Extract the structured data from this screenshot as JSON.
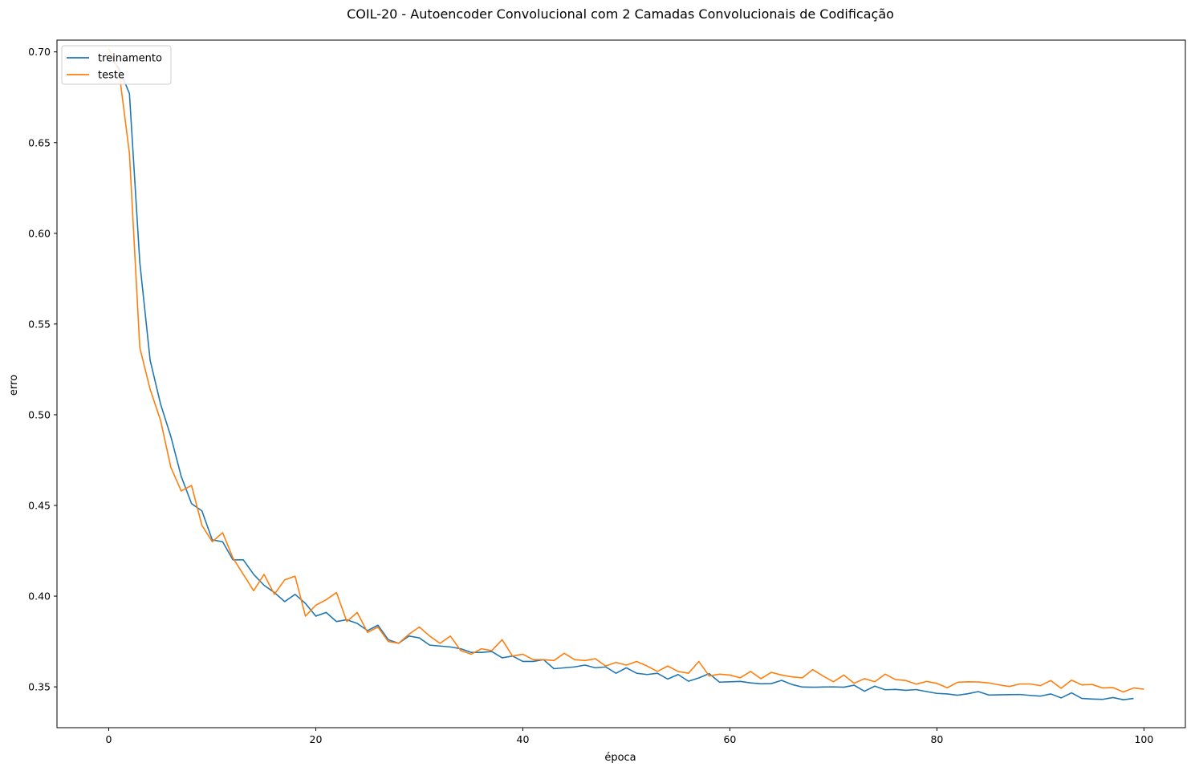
{
  "chart_data": {
    "type": "line",
    "title": "COIL-20 - Autoencoder Convolucional com 2 Camadas Convolucionais de Codificação",
    "xlabel": "época",
    "ylabel": "erro",
    "xlim": [
      -5,
      104
    ],
    "ylim": [
      0.3275,
      0.7065
    ],
    "xticks": [
      0,
      20,
      40,
      60,
      80,
      100
    ],
    "xtick_labels": [
      "0",
      "20",
      "40",
      "60",
      "80",
      "100"
    ],
    "yticks": [
      0.35,
      0.4,
      0.45,
      0.5,
      0.55,
      0.6,
      0.65,
      0.7
    ],
    "ytick_labels": [
      "0.35",
      "0.40",
      "0.45",
      "0.50",
      "0.55",
      "0.60",
      "0.65",
      "0.70"
    ],
    "grid": false,
    "legend_position": "upper-left",
    "series": [
      {
        "name": "treinamento",
        "color": "#1f77b4",
        "values": [
          0.698,
          0.691,
          0.677,
          0.584,
          0.53,
          0.506,
          0.488,
          0.466,
          0.451,
          0.447,
          0.431,
          0.43,
          0.42,
          0.42,
          0.412,
          0.406,
          0.402,
          0.397,
          0.401,
          0.396,
          0.389,
          0.391,
          0.386,
          0.387,
          0.385,
          0.381,
          0.384,
          0.376,
          0.374,
          0.378,
          0.377,
          0.373,
          0.3725,
          0.372,
          0.371,
          0.369,
          0.369,
          0.3695,
          0.366,
          0.367,
          0.364,
          0.364,
          0.365,
          0.36,
          0.3605,
          0.361,
          0.362,
          0.3605,
          0.361,
          0.3575,
          0.3605,
          0.3575,
          0.3568,
          0.3575,
          0.3543,
          0.3568,
          0.3531,
          0.3549,
          0.3573,
          0.3526,
          0.3528,
          0.353,
          0.3522,
          0.3517,
          0.3518,
          0.3536,
          0.3513,
          0.3499,
          0.3498,
          0.3499,
          0.35,
          0.3498,
          0.3509,
          0.3476,
          0.3504,
          0.3484,
          0.3486,
          0.3481,
          0.3485,
          0.3474,
          0.3464,
          0.3461,
          0.3454,
          0.3462,
          0.3474,
          0.3455,
          0.3456,
          0.3457,
          0.3458,
          0.3453,
          0.3449,
          0.3461,
          0.3439,
          0.3467,
          0.3436,
          0.3433,
          0.3431,
          0.3441,
          0.3429,
          0.3436
        ]
      },
      {
        "name": "teste",
        "color": "#ff7f0e",
        "values": [
          0.702,
          0.689,
          0.644,
          0.537,
          0.514,
          0.497,
          0.471,
          0.458,
          0.461,
          0.439,
          0.43,
          0.435,
          0.421,
          0.412,
          0.403,
          0.412,
          0.401,
          0.409,
          0.411,
          0.389,
          0.395,
          0.398,
          0.402,
          0.386,
          0.391,
          0.38,
          0.383,
          0.375,
          0.374,
          0.379,
          0.383,
          0.378,
          0.374,
          0.378,
          0.37,
          0.368,
          0.371,
          0.37,
          0.376,
          0.367,
          0.368,
          0.365,
          0.365,
          0.3645,
          0.3685,
          0.365,
          0.3645,
          0.3655,
          0.3615,
          0.3635,
          0.362,
          0.364,
          0.3615,
          0.3585,
          0.3615,
          0.3585,
          0.3575,
          0.364,
          0.356,
          0.357,
          0.3565,
          0.355,
          0.3585,
          0.3545,
          0.358,
          0.3565,
          0.3555,
          0.355,
          0.3595,
          0.356,
          0.3528,
          0.3565,
          0.352,
          0.3545,
          0.3528,
          0.357,
          0.354,
          0.3535,
          0.3515,
          0.353,
          0.3519,
          0.3495,
          0.3525,
          0.3528,
          0.3527,
          0.3522,
          0.3511,
          0.3502,
          0.3516,
          0.3516,
          0.3507,
          0.3535,
          0.3492,
          0.3537,
          0.3511,
          0.3513,
          0.3494,
          0.3496,
          0.3472,
          0.3494,
          0.3487
        ]
      }
    ]
  }
}
